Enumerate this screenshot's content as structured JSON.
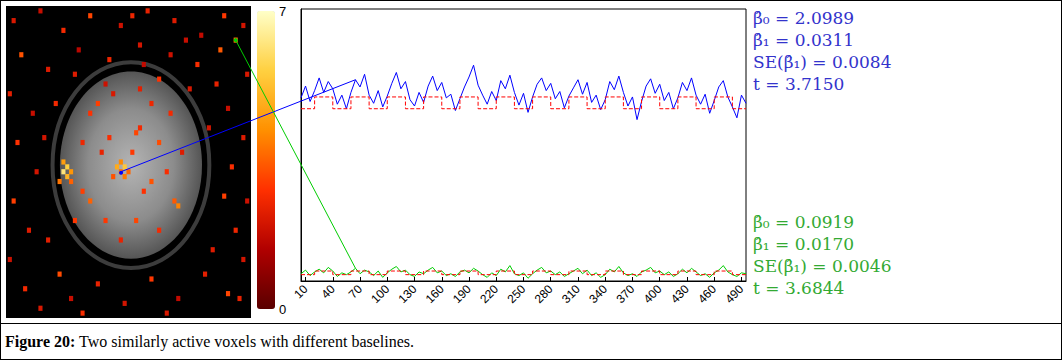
{
  "chart_data": [
    {
      "type": "heatmap",
      "xlim": [
        0,
        64
      ],
      "ylim": [
        0,
        64
      ],
      "tick_labels": false,
      "color_range": [
        0,
        7
      ],
      "color_ticks": [
        0,
        7
      ],
      "cells": [
        [
          2,
          3,
          2.1
        ],
        [
          9,
          1,
          1.8
        ],
        [
          15,
          5,
          2.6
        ],
        [
          22,
          2,
          3.1
        ],
        [
          30,
          4,
          1.9
        ],
        [
          37,
          1,
          2.4
        ],
        [
          44,
          3,
          2.2
        ],
        [
          51,
          6,
          1.7
        ],
        [
          57,
          2,
          2.9
        ],
        [
          62,
          4,
          2.0
        ],
        [
          4,
          10,
          3.3
        ],
        [
          11,
          13,
          2.2
        ],
        [
          19,
          9,
          1.6
        ],
        [
          27,
          11,
          2.5
        ],
        [
          35,
          8,
          2.0
        ],
        [
          43,
          10,
          1.9
        ],
        [
          50,
          12,
          2.7
        ],
        [
          56,
          9,
          3.4
        ],
        [
          60,
          7,
          3.68
        ],
        [
          63,
          14,
          2.1
        ],
        [
          1,
          18,
          2.3
        ],
        [
          7,
          22,
          1.8
        ],
        [
          3,
          28,
          2.8
        ],
        [
          8,
          34,
          2.0
        ],
        [
          2,
          40,
          3.0
        ],
        [
          6,
          46,
          2.2
        ],
        [
          1,
          52,
          1.9
        ],
        [
          5,
          58,
          2.6
        ],
        [
          9,
          62,
          2.1
        ],
        [
          14,
          55,
          3.2
        ],
        [
          17,
          60,
          1.8
        ],
        [
          24,
          57,
          2.4
        ],
        [
          31,
          61,
          2.0
        ],
        [
          38,
          56,
          2.9
        ],
        [
          45,
          60,
          1.7
        ],
        [
          52,
          55,
          2.3
        ],
        [
          58,
          59,
          3.1
        ],
        [
          62,
          52,
          2.0
        ],
        [
          60,
          46,
          2.5
        ],
        [
          63,
          40,
          1.9
        ],
        [
          59,
          33,
          2.7
        ],
        [
          62,
          27,
          2.2
        ],
        [
          58,
          21,
          1.8
        ],
        [
          55,
          16,
          2.4
        ],
        [
          48,
          17,
          2.1
        ],
        [
          40,
          15,
          2.8
        ],
        [
          26,
          16,
          1.9
        ],
        [
          13,
          20,
          2.6
        ],
        [
          10,
          27,
          2.0
        ],
        [
          11,
          48,
          2.3
        ],
        [
          54,
          50,
          2.2
        ],
        [
          57,
          39,
          3.0
        ],
        [
          33,
          2,
          2.5
        ],
        [
          47,
          7,
          1.8
        ],
        [
          20,
          63,
          2.7
        ],
        [
          42,
          63,
          2.1
        ],
        [
          36,
          12,
          1.7
        ],
        [
          18,
          14,
          2.2
        ],
        [
          53,
          25,
          2.0
        ],
        [
          61,
          60,
          2.4
        ],
        [
          15,
          32,
          4.5
        ],
        [
          16,
          33,
          5.6
        ],
        [
          15,
          34,
          6.2
        ],
        [
          16,
          35,
          5.0
        ],
        [
          17,
          34,
          4.3
        ],
        [
          14,
          36,
          3.8
        ],
        [
          17,
          36,
          3.5
        ],
        [
          30,
          34,
          3.72
        ],
        [
          29,
          33,
          4.8
        ],
        [
          31,
          33,
          5.4
        ],
        [
          30,
          32,
          4.1
        ],
        [
          31,
          35,
          3.9
        ],
        [
          28,
          35,
          3.3
        ],
        [
          32,
          34,
          3.6
        ],
        [
          33,
          30,
          2.9
        ],
        [
          34,
          26,
          3.1
        ],
        [
          35,
          25,
          2.6
        ],
        [
          22,
          22,
          2.8
        ],
        [
          24,
          20,
          3.0
        ],
        [
          38,
          20,
          2.5
        ],
        [
          40,
          28,
          3.2
        ],
        [
          42,
          34,
          2.7
        ],
        [
          44,
          40,
          3.4
        ],
        [
          45,
          41,
          4.0
        ],
        [
          40,
          46,
          2.6
        ],
        [
          34,
          44,
          3.1
        ],
        [
          26,
          44,
          2.9
        ],
        [
          22,
          40,
          3.5
        ],
        [
          20,
          38,
          3.0
        ],
        [
          25,
          30,
          2.4
        ],
        [
          27,
          27,
          2.7
        ],
        [
          36,
          38,
          2.8
        ],
        [
          38,
          36,
          3.3
        ],
        [
          20,
          28,
          2.5
        ],
        [
          46,
          30,
          2.2
        ],
        [
          30,
          48,
          2.4
        ],
        [
          18,
          44,
          2.9
        ],
        [
          35,
          17,
          2.3
        ],
        [
          28,
          18,
          2.1
        ],
        [
          43,
          22,
          2.6
        ]
      ]
    },
    {
      "type": "line",
      "xlim": [
        5,
        495
      ],
      "xticks": [
        10,
        40,
        70,
        100,
        130,
        160,
        190,
        220,
        250,
        280,
        310,
        340,
        370,
        400,
        430,
        460,
        490
      ],
      "ylim": [
        0,
        3
      ],
      "tick_labels": "x",
      "grid": false,
      "x": [
        5,
        10,
        15,
        20,
        25,
        30,
        35,
        40,
        45,
        50,
        55,
        60,
        65,
        70,
        75,
        80,
        85,
        90,
        95,
        100,
        105,
        110,
        115,
        120,
        125,
        130,
        135,
        140,
        145,
        150,
        155,
        160,
        165,
        170,
        175,
        180,
        185,
        190,
        195,
        200,
        205,
        210,
        215,
        220,
        225,
        230,
        235,
        240,
        245,
        250,
        255,
        260,
        265,
        270,
        275,
        280,
        285,
        290,
        295,
        300,
        305,
        310,
        315,
        320,
        325,
        330,
        335,
        340,
        345,
        350,
        355,
        360,
        365,
        370,
        375,
        380,
        385,
        390,
        395,
        400,
        405,
        410,
        415,
        420,
        425,
        430,
        435,
        440,
        445,
        450,
        455,
        460,
        465,
        470,
        475,
        480,
        485,
        490,
        495
      ],
      "series": [
        {
          "color": "#0000ff",
          "line_style": "solid",
          "voxel": [
            30,
            34
          ],
          "values": [
            2.02,
            2.15,
            1.98,
            2.1,
            2.24,
            2.08,
            2.2,
            2.12,
            1.95,
            2.05,
            1.9,
            2.08,
            2.22,
            2.14,
            2.28,
            2.05,
            1.96,
            2.1,
            1.92,
            2.04,
            2.18,
            2.3,
            2.12,
            2.2,
            2.0,
            1.93,
            2.08,
            1.97,
            2.15,
            2.26,
            2.1,
            2.19,
            2.02,
            2.06,
            1.88,
            2.01,
            2.14,
            2.25,
            2.38,
            2.16,
            2.05,
            1.95,
            2.09,
            1.99,
            2.21,
            2.12,
            2.27,
            2.08,
            1.94,
            2.07,
            1.86,
            2.03,
            2.17,
            2.24,
            2.1,
            2.18,
            2.01,
            2.09,
            1.91,
            2.04,
            2.13,
            2.22,
            2.06,
            2.19,
            1.97,
            2.05,
            1.89,
            2.0,
            2.2,
            2.11,
            2.26,
            2.08,
            1.93,
            2.03,
            1.78,
            1.98,
            2.15,
            2.23,
            2.07,
            2.17,
            1.99,
            2.08,
            1.9,
            2.02,
            2.19,
            2.1,
            2.24,
            2.05,
            1.95,
            2.06,
            1.85,
            1.99,
            2.14,
            2.21,
            2.03,
            1.92,
            1.8,
            2.05,
            1.96
          ],
          "annotations": [
            {
              "text": "β̂₀ = 2.0989",
              "color": "#3333cc"
            },
            {
              "text": "β̂₁ = 0.0311",
              "color": "#3333cc"
            },
            {
              "text": "SE(β̂₁) = 0.0084",
              "color": "#3333cc"
            },
            {
              "text": "t = 3.7150",
              "color": "#3333cc"
            }
          ]
        },
        {
          "color": "#00cc00",
          "line_style": "solid",
          "voxel": [
            60,
            7
          ],
          "values": [
            0.08,
            0.12,
            0.06,
            0.1,
            0.13,
            0.09,
            0.15,
            0.11,
            0.05,
            0.09,
            0.07,
            0.1,
            0.14,
            0.08,
            0.12,
            0.1,
            0.06,
            0.11,
            0.04,
            0.09,
            0.13,
            0.16,
            0.1,
            0.12,
            0.07,
            0.05,
            0.1,
            0.08,
            0.12,
            0.15,
            0.09,
            0.11,
            0.06,
            0.08,
            0.05,
            0.1,
            0.12,
            0.09,
            0.14,
            0.11,
            0.07,
            0.04,
            0.09,
            0.06,
            0.13,
            0.1,
            0.17,
            0.08,
            0.06,
            0.09,
            0.03,
            0.08,
            0.12,
            0.15,
            0.09,
            0.11,
            0.07,
            0.1,
            0.05,
            0.08,
            0.11,
            0.14,
            0.08,
            0.12,
            0.06,
            0.09,
            0.04,
            0.07,
            0.13,
            0.1,
            0.16,
            0.09,
            0.06,
            0.08,
            0.05,
            0.1,
            0.12,
            0.15,
            0.09,
            0.11,
            0.07,
            0.1,
            0.05,
            0.08,
            0.13,
            0.09,
            0.14,
            0.1,
            0.06,
            0.08,
            0.04,
            0.09,
            0.12,
            0.17,
            0.1,
            0.07,
            0.05,
            0.09,
            0.08
          ],
          "annotations": [
            {
              "text": "β̂₀ = 0.0919",
              "color": "#33aa33"
            },
            {
              "text": "β̂₁ = 0.0170",
              "color": "#33aa33"
            },
            {
              "text": "SE(β̂₁) = 0.0046",
              "color": "#33aa33"
            },
            {
              "text": "t = 3.6844",
              "color": "#33aa33"
            }
          ]
        },
        {
          "color": "#ff0000",
          "line_style": "dashed",
          "x": [
            5,
            20,
            20,
            40,
            40,
            60,
            60,
            80,
            80,
            100,
            100,
            120,
            120,
            140,
            140,
            160,
            160,
            180,
            180,
            200,
            200,
            220,
            220,
            240,
            240,
            260,
            260,
            280,
            280,
            300,
            300,
            320,
            320,
            340,
            340,
            360,
            360,
            380,
            380,
            400,
            400,
            420,
            420,
            440,
            440,
            460,
            460,
            480,
            480,
            495
          ],
          "values": [
            1.9,
            1.9,
            2.03,
            2.03,
            1.9,
            1.9,
            2.03,
            2.03,
            1.9,
            1.9,
            2.03,
            2.03,
            1.9,
            1.9,
            2.03,
            2.03,
            1.9,
            1.9,
            2.03,
            2.03,
            1.9,
            1.9,
            2.03,
            2.03,
            1.9,
            1.9,
            2.03,
            2.03,
            1.9,
            1.9,
            2.03,
            2.03,
            1.9,
            1.9,
            2.03,
            2.03,
            1.9,
            1.9,
            2.03,
            2.03,
            1.9,
            1.9,
            2.03,
            2.03,
            1.9,
            1.9,
            2.03,
            2.03,
            1.9,
            1.9
          ]
        },
        {
          "color": "#ff0000",
          "line_style": "dashed",
          "x": [
            5,
            20,
            20,
            40,
            40,
            60,
            60,
            80,
            80,
            100,
            100,
            120,
            120,
            140,
            140,
            160,
            160,
            180,
            180,
            200,
            200,
            220,
            220,
            240,
            240,
            260,
            260,
            280,
            280,
            300,
            300,
            320,
            320,
            340,
            340,
            360,
            360,
            380,
            380,
            400,
            400,
            420,
            420,
            440,
            440,
            460,
            460,
            480,
            480,
            495
          ],
          "values": [
            0.07,
            0.07,
            0.11,
            0.11,
            0.07,
            0.07,
            0.11,
            0.11,
            0.07,
            0.07,
            0.11,
            0.11,
            0.07,
            0.07,
            0.11,
            0.11,
            0.07,
            0.07,
            0.11,
            0.11,
            0.07,
            0.07,
            0.11,
            0.11,
            0.07,
            0.07,
            0.11,
            0.11,
            0.07,
            0.07,
            0.11,
            0.11,
            0.07,
            0.07,
            0.11,
            0.11,
            0.07,
            0.07,
            0.11,
            0.11,
            0.07,
            0.07,
            0.11,
            0.11,
            0.07,
            0.07,
            0.11,
            0.11,
            0.07,
            0.07
          ]
        }
      ]
    }
  ],
  "caption": {
    "label": "Figure 20:",
    "text": "Two similarly active voxels with different baselines."
  }
}
